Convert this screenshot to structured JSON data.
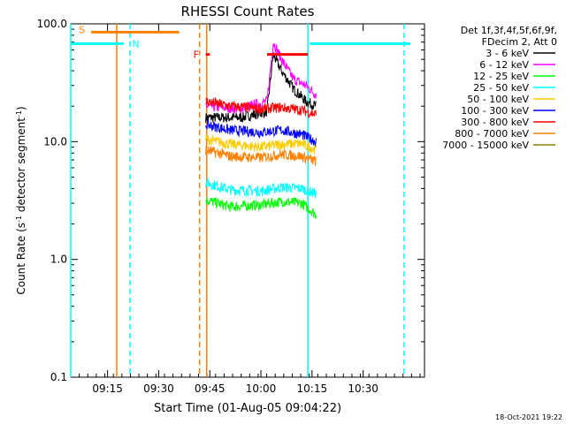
{
  "chart_data": {
    "type": "line",
    "title": "RHESSI Count Rates",
    "xlabel": "Start Time (01-Aug-05 09:04:22)",
    "ylabel_main": "Count Rate (s",
    "ylabel_sup": "-1",
    "ylabel_tail": " detector segment",
    "ylabel_sup2": "-1",
    "ylabel_close": ")",
    "y_scale": "log",
    "ylim": [
      0.1,
      100
    ],
    "xlim_minutes": [
      9.07,
      10.8
    ],
    "x_ticks": [
      {
        "t": 9.25,
        "label": "09:15"
      },
      {
        "t": 9.5,
        "label": "09:30"
      },
      {
        "t": 9.75,
        "label": "09:45"
      },
      {
        "t": 10.0,
        "label": "10:00"
      },
      {
        "t": 10.25,
        "label": "10:15"
      },
      {
        "t": 10.5,
        "label": "10:30"
      }
    ],
    "y_ticks": [
      {
        "v": 0.1,
        "label": "0.1"
      },
      {
        "v": 1,
        "label": "1.0"
      },
      {
        "v": 10,
        "label": "10.0"
      },
      {
        "v": 100,
        "label": "100.0"
      }
    ],
    "legend_header": [
      "Det 1f,3f,4f,5f,6f,9f,",
      "FDecim 2, Att 0"
    ],
    "legend_position": "right",
    "series": [
      {
        "name": "3 - 6 keV",
        "color": "#000000",
        "base": [
          [
            9.73,
            16
          ],
          [
            9.9,
            16
          ],
          [
            10.03,
            18
          ],
          [
            10.06,
            55
          ],
          [
            10.1,
            40
          ],
          [
            10.16,
            28
          ],
          [
            10.22,
            22
          ],
          [
            10.27,
            20
          ]
        ]
      },
      {
        "name": "6 - 12 keV",
        "color": "#ff00ff",
        "base": [
          [
            9.73,
            20
          ],
          [
            9.9,
            19
          ],
          [
            10.03,
            22
          ],
          [
            10.06,
            70
          ],
          [
            10.1,
            50
          ],
          [
            10.16,
            34
          ],
          [
            10.22,
            30
          ],
          [
            10.27,
            25
          ]
        ]
      },
      {
        "name": "12 - 25 keV",
        "color": "#00ff00",
        "base": [
          [
            9.73,
            3.2
          ],
          [
            9.85,
            2.8
          ],
          [
            10.0,
            2.9
          ],
          [
            10.1,
            3.1
          ],
          [
            10.2,
            3.0
          ],
          [
            10.27,
            2.4
          ]
        ]
      },
      {
        "name": "25 - 50 keV",
        "color": "#00ffff",
        "base": [
          [
            9.73,
            4.5
          ],
          [
            9.85,
            3.9
          ],
          [
            10.0,
            3.8
          ],
          [
            10.1,
            4.1
          ],
          [
            10.2,
            4.0
          ],
          [
            10.27,
            3.6
          ]
        ]
      },
      {
        "name": "50 - 100 keV",
        "color": "#ffcc00",
        "base": [
          [
            9.73,
            10.5
          ],
          [
            9.85,
            9.5
          ],
          [
            10.0,
            9.0
          ],
          [
            10.1,
            9.5
          ],
          [
            10.2,
            9.6
          ],
          [
            10.27,
            8.5
          ]
        ]
      },
      {
        "name": "100 - 300 keV",
        "color": "#0000ff",
        "base": [
          [
            9.73,
            14
          ],
          [
            9.85,
            12.5
          ],
          [
            10.0,
            12
          ],
          [
            10.1,
            12.5
          ],
          [
            10.2,
            11.5
          ],
          [
            10.27,
            10
          ]
        ]
      },
      {
        "name": "300 - 800 keV",
        "color": "#ff0000",
        "base": [
          [
            9.73,
            22
          ],
          [
            9.85,
            20
          ],
          [
            10.0,
            19
          ],
          [
            10.1,
            19.5
          ],
          [
            10.2,
            18.5
          ],
          [
            10.27,
            17
          ]
        ]
      },
      {
        "name": "800 - 7000 keV",
        "color": "#ff8000",
        "base": [
          [
            9.73,
            8.5
          ],
          [
            9.85,
            7.5
          ],
          [
            10.0,
            7.3
          ],
          [
            10.1,
            7.8
          ],
          [
            10.2,
            7.5
          ],
          [
            10.27,
            6.8
          ]
        ]
      },
      {
        "name": "7000 - 15000 keV",
        "color": "#808000",
        "base": []
      }
    ],
    "annotations": {
      "S": {
        "label": "S",
        "color": "#ff8000",
        "t_start": 9.17,
        "t_end": 9.6,
        "level": 85
      },
      "N": {
        "label": "N",
        "color": "#00ffff",
        "level": 68
      },
      "F": {
        "label": "F",
        "color": "#ff0000",
        "t_start": 9.73,
        "t_end": 9.75,
        "level": 55
      },
      "flare_bar": {
        "color": "#ff0000",
        "t_start": 10.03,
        "t_end": 10.23,
        "level": 55
      }
    },
    "vlines": [
      {
        "t": 9.07,
        "color": "#00ffff",
        "dash": false
      },
      {
        "t": 9.295,
        "color": "#ff8000",
        "dash": false
      },
      {
        "t": 9.36,
        "color": "#00ffff",
        "dash": true
      },
      {
        "t": 9.7,
        "color": "#ff8000",
        "dash": true
      },
      {
        "t": 9.735,
        "color": "#ff8000",
        "dash": false
      },
      {
        "t": 10.23,
        "color": "#00ffff",
        "dash": false
      },
      {
        "t": 10.7,
        "color": "#00ffff",
        "dash": true
      }
    ]
  },
  "footer": {
    "timestamp": "18-Oct-2021 19:22"
  }
}
